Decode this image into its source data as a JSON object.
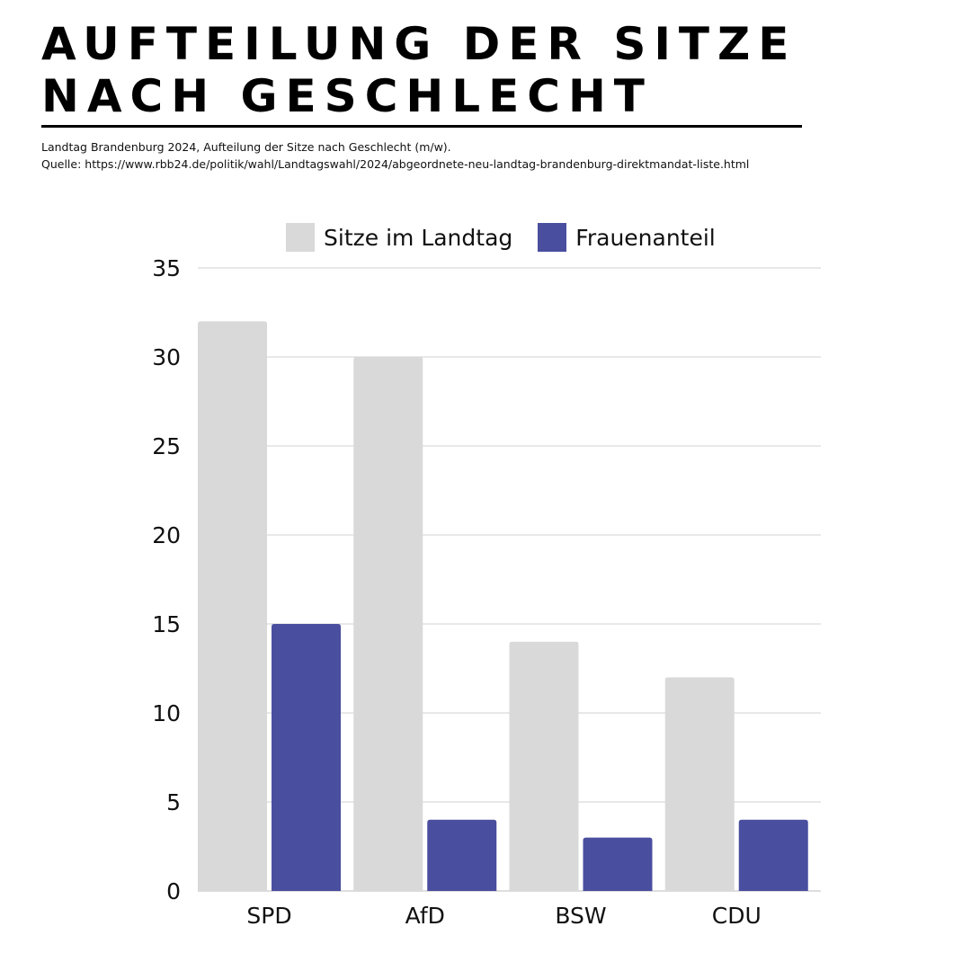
{
  "header": {
    "title_line1": "AUFTEILUNG DER SITZE",
    "title_line2": "NACH GESCHLECHT",
    "caption_line1": "Landtag Brandenburg 2024, Aufteilung der Sitze nach Geschlecht (m/w).",
    "caption_line2": "Quelle: https://www.rbb24.de/politik/wahl/Landtagswahl/2024/abgeordnete-neu-landtag-brandenburg-direktmandat-liste.html"
  },
  "chart_data": {
    "type": "bar",
    "title": "AUFTEILUNG DER SITZE NACH GESCHLECHT",
    "xlabel": "",
    "ylabel": "",
    "categories": [
      "SPD",
      "AfD",
      "BSW",
      "CDU"
    ],
    "series": [
      {
        "name": "Sitze im Landtag",
        "color": "#d9d9d9",
        "values": [
          32,
          30,
          14,
          12
        ]
      },
      {
        "name": "Frauenanteil",
        "color": "#4a4e9f",
        "values": [
          15,
          4,
          3,
          4
        ]
      }
    ],
    "ylim": [
      0,
      35
    ],
    "yticks": [
      "0",
      "5",
      "10",
      "15",
      "20",
      "25",
      "30",
      "35"
    ],
    "grid": true,
    "legend": "top"
  }
}
